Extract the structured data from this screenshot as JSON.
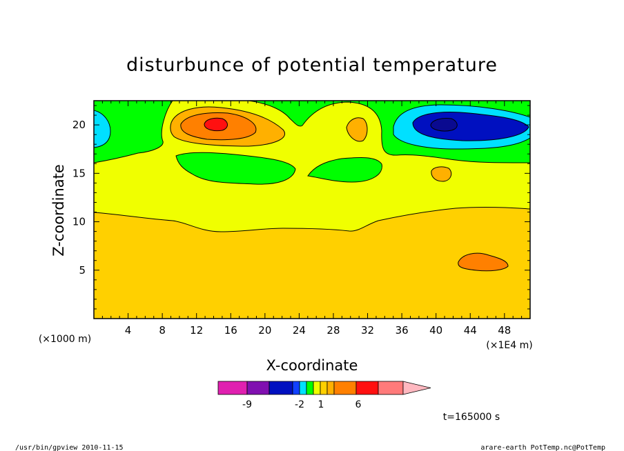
{
  "chart_data": {
    "type": "contour",
    "title": "disturbunce of potential temperature",
    "xlabel": "X-coordinate",
    "ylabel": "Z-coordinate",
    "x_unit": "(×1E4 m)",
    "y_unit": "(×1000 m)",
    "xlim": [
      0,
      51
    ],
    "ylim": [
      0,
      22.5
    ],
    "x_ticks": [
      "4",
      "8",
      "12",
      "16",
      "20",
      "24",
      "28",
      "32",
      "36",
      "40",
      "44",
      "48"
    ],
    "y_ticks": [
      "5",
      "10",
      "15",
      "20"
    ],
    "time_label": "t=165000 s",
    "colorbar": {
      "colors": [
        "#e020b0",
        "#8010b0",
        "#0010c0",
        "#1040ff",
        "#00e0ff",
        "#00ff00",
        "#f0ff00",
        "#ffd000",
        "#ffb000",
        "#ff8000",
        "#ff1010",
        "#ff7a7a",
        "#ffb8c0"
      ],
      "labels": [
        "-9",
        "-2",
        "1",
        "6"
      ]
    },
    "regions": {
      "base_level": "1 to 2",
      "upper_band_level": "0 to 1",
      "cold_anomaly_center": {
        "x": 40.5,
        "z": 20.2,
        "level": "below -2"
      },
      "warm_anomaly_center": {
        "x": 14,
        "z": 20.3,
        "level": "above 3"
      },
      "warm_spot_low": {
        "x": 45,
        "z": 6,
        "level": "2 to 3"
      }
    }
  },
  "footer": {
    "left": "/usr/bin/gpview  2010-11-15",
    "right": "arare-earth_PotTemp.nc@PotTemp"
  }
}
